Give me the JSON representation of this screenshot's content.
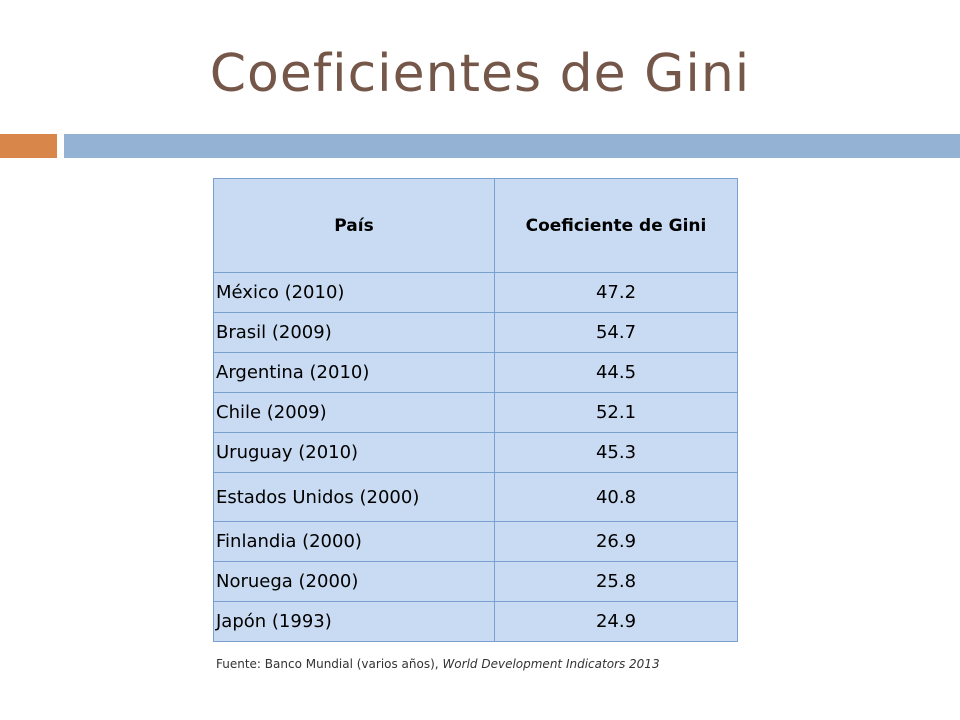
{
  "title": "Coeficientes de Gini",
  "accent_colors": {
    "orange": "#d9864a",
    "blue": "#94b3d4",
    "table_fill": "#c9dbf2",
    "title": "#75574a"
  },
  "table": {
    "headers": [
      "País",
      "Coeficiente de Gini"
    ],
    "rows": [
      {
        "country": "México (2010)",
        "gini": "47.2"
      },
      {
        "country": "Brasil (2009)",
        "gini": "54.7"
      },
      {
        "country": "Argentina (2010)",
        "gini": "44.5"
      },
      {
        "country": "Chile (2009)",
        "gini": "52.1"
      },
      {
        "country": "Uruguay (2010)",
        "gini": "45.3"
      },
      {
        "country": "Estados Unidos (2000)",
        "gini": "40.8"
      },
      {
        "country": "Finlandia (2000)",
        "gini": "26.9"
      },
      {
        "country": "Noruega (2000)",
        "gini": "25.8"
      },
      {
        "country": "Japón (1993)",
        "gini": "24.9"
      }
    ]
  },
  "source": {
    "prefix": "Fuente: Banco Mundial (varios años), ",
    "italic": "World Development Indicators 2013"
  }
}
